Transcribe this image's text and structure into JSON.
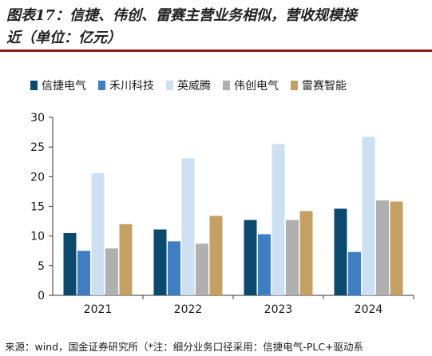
{
  "title": {
    "line1": "图表17：信捷、伟创、雷赛主营业务相似，营收规模接",
    "line2": "近（单位：亿元）"
  },
  "chart_data": {
    "type": "bar",
    "categories": [
      "2021",
      "2022",
      "2023",
      "2024"
    ],
    "series": [
      {
        "name": "信捷电气",
        "color": "#0b4a6f",
        "values": [
          10.5,
          11.1,
          12.7,
          14.6
        ]
      },
      {
        "name": "禾川科技",
        "color": "#3f7ec2",
        "values": [
          7.5,
          9.1,
          10.3,
          7.3
        ]
      },
      {
        "name": "英威腾",
        "color": "#cde0f2",
        "values": [
          20.6,
          23.1,
          25.5,
          26.7
        ]
      },
      {
        "name": "伟创电气",
        "color": "#b0b0b0",
        "values": [
          7.9,
          8.7,
          12.7,
          16.0
        ]
      },
      {
        "name": "雷赛智能",
        "color": "#c5a063",
        "values": [
          12.0,
          13.4,
          14.2,
          15.8
        ]
      }
    ],
    "ylim": [
      0,
      30
    ],
    "yticks": [
      "0",
      "5",
      "10",
      "15",
      "20",
      "25",
      "30"
    ],
    "grid": false,
    "legend_position": "top"
  },
  "footer": {
    "source": "来源：wind，国金证券研究所（*注：细分业务口径采用：信捷电气-PLC+驱动系"
  }
}
